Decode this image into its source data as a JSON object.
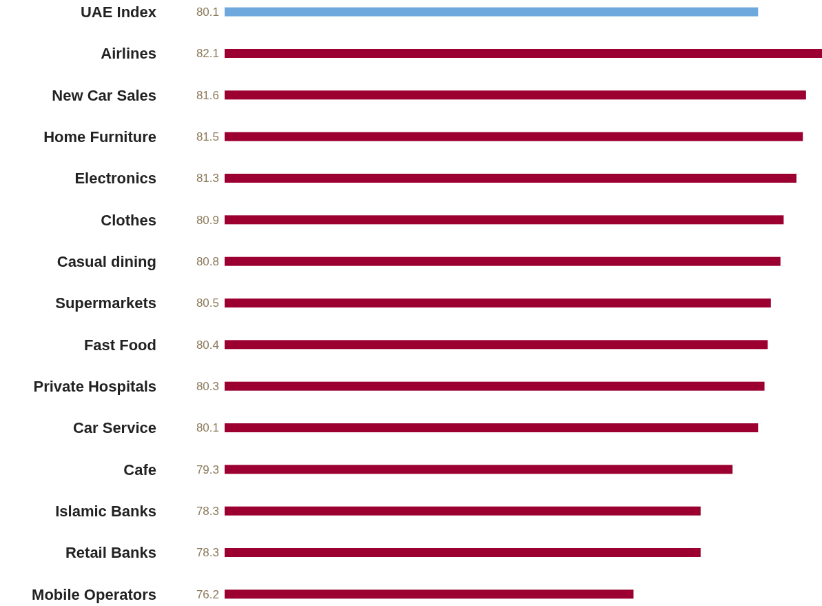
{
  "chart_data": {
    "type": "bar",
    "orientation": "horizontal",
    "categories": [
      "UAE Index",
      "Airlines",
      "New Car Sales",
      "Home Furniture",
      "Electronics",
      "Clothes",
      "Casual dining",
      "Supermarkets",
      "Fast Food",
      "Private Hospitals",
      "Car Service",
      "Cafe",
      "Islamic Banks",
      "Retail Banks",
      "Mobile Operators"
    ],
    "values": [
      80.1,
      82.1,
      81.6,
      81.5,
      81.3,
      80.9,
      80.8,
      80.5,
      80.4,
      80.3,
      80.1,
      79.3,
      78.3,
      78.3,
      76.2
    ],
    "colors": [
      "#6fa8dc",
      "#9b0031",
      "#9b0031",
      "#9b0031",
      "#9b0031",
      "#9b0031",
      "#9b0031",
      "#9b0031",
      "#9b0031",
      "#9b0031",
      "#9b0031",
      "#9b0031",
      "#9b0031",
      "#9b0031",
      "#9b0031"
    ],
    "xlim": [
      63.4,
      82.1
    ],
    "data_labels": true,
    "tick_labels": "y"
  }
}
